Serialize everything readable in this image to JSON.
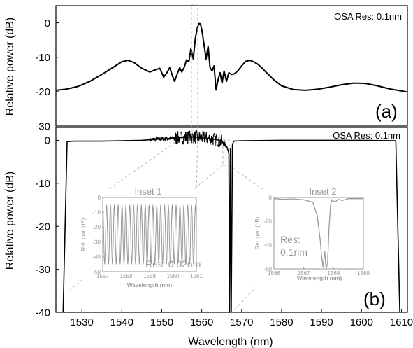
{
  "chart_data": [
    {
      "id": "a",
      "type": "line",
      "panel_label": "(a)",
      "annotation": "OSA Res: 0.1nm",
      "ylabel": "Relative power (dB)",
      "ylim": [
        -30,
        5
      ],
      "xlim": [
        1523.5,
        1611.5
      ],
      "yticks": [
        0,
        -10,
        -20,
        -30
      ],
      "ytick_labels": [
        "0",
        "-10",
        "-20",
        "-30"
      ],
      "grid": false,
      "series": [
        {
          "x": [
            1523.5,
            1526,
            1529,
            1532,
            1535,
            1538,
            1540,
            1541.5,
            1543,
            1545,
            1547,
            1548.5,
            1549.5,
            1550.5,
            1551.3,
            1552,
            1552.7,
            1553.2,
            1553.9,
            1554.5,
            1555,
            1555.6,
            1556.2,
            1556.8,
            1557.3,
            1557.9,
            1558.4,
            1558.9,
            1559.3,
            1559.7,
            1560.1,
            1560.6,
            1561.1,
            1561.6,
            1562.1,
            1562.6,
            1563.1,
            1563.6,
            1564.1,
            1564.6,
            1565.1,
            1565.6,
            1566.2,
            1566.8,
            1567.5,
            1568.2,
            1569,
            1570,
            1571,
            1572,
            1573,
            1574,
            1575,
            1576,
            1578,
            1580,
            1583,
            1586,
            1589,
            1592,
            1595,
            1598,
            1601,
            1604,
            1607,
            1611.5
          ],
          "y": [
            -19.6,
            -19.3,
            -18.5,
            -17,
            -15,
            -12.8,
            -11.3,
            -10.9,
            -11.5,
            -13.2,
            -14.3,
            -13.6,
            -13.2,
            -15.8,
            -14.5,
            -13,
            -15.5,
            -17,
            -14.8,
            -13,
            -14.3,
            -13,
            -10.8,
            -11.3,
            -7.5,
            -10.5,
            -4.5,
            -1.5,
            -0.2,
            -0.3,
            -2.5,
            -6.5,
            -10.5,
            -6.8,
            -13,
            -14,
            -12.5,
            -19.5,
            -16.5,
            -14.5,
            -17.5,
            -14,
            -17,
            -14.5,
            -15,
            -14.8,
            -14,
            -12.5,
            -11.2,
            -10.9,
            -11.3,
            -12,
            -13,
            -14.2,
            -16.5,
            -18.3,
            -19.4,
            -19.6,
            -19.3,
            -18.7,
            -18,
            -17.5,
            -17.6,
            -18.3,
            -19.2,
            -20.1
          ]
        }
      ]
    },
    {
      "id": "b",
      "type": "line",
      "panel_label": "(b)",
      "annotation": "OSA Res: 0.1nm",
      "xlabel": "Wavelength (nm)",
      "ylabel": "Relative power (dB)",
      "ylim": [
        -40,
        3
      ],
      "xlim": [
        1523.5,
        1611.5
      ],
      "xticks": [
        1530,
        1540,
        1550,
        1560,
        1570,
        1580,
        1590,
        1600,
        1610
      ],
      "xtick_labels": [
        "1530",
        "1540",
        "1550",
        "1560",
        "1570",
        "1580",
        "1590",
        "1600",
        "1610"
      ],
      "yticks": [
        0,
        -10,
        -20,
        -30,
        -40
      ],
      "ytick_labels": [
        "0",
        "-10",
        "-20",
        "-30",
        "-40"
      ],
      "grid": false,
      "series": [
        {
          "x": [
            1525.3,
            1526.3,
            1528,
            1535,
            1540,
            1545,
            1548,
            1550,
            1553,
            1556,
            1558,
            1560,
            1562,
            1564,
            1565.5,
            1566.3,
            1566.8,
            1567,
            1567.2,
            1567.4,
            1567.7,
            1568,
            1570,
            1580,
            1590,
            1600,
            1608.6,
            1609.6
          ],
          "y": [
            -40,
            -0.3,
            -0.2,
            -0.2,
            -0.1,
            0,
            0.2,
            0.3,
            0.5,
            0.7,
            0.8,
            0.6,
            0.4,
            0.1,
            -0.6,
            -1.5,
            -3,
            -40,
            -2,
            -40,
            -1,
            -0.2,
            -0.1,
            0,
            0,
            0,
            -0.1,
            -40
          ]
        }
      ],
      "insets": [
        {
          "type": "line",
          "title": "Inset 1",
          "annotation": "Res: 0.02nm",
          "xlabel": "Wavelength (nm)",
          "ylabel": "Rel. pwr (dB)",
          "xlim": [
            1557,
            1561
          ],
          "ylim": [
            -50,
            0
          ],
          "xticks": [
            1557,
            1558,
            1559,
            1560,
            1561
          ],
          "xtick_labels": [
            "1557",
            "1558",
            "1559",
            "1560",
            "1561"
          ],
          "yticks": [
            0,
            -10,
            -20,
            -30,
            -40,
            -50
          ],
          "ytick_labels": [
            "0",
            "-10",
            "-20",
            "-30",
            "-40",
            "-50"
          ],
          "series": [
            {
              "fringe_peaks_dB": -5,
              "fringe_troughs_dB": -45,
              "fringe_period_nm": 0.165
            }
          ]
        },
        {
          "type": "line",
          "title": "Inset 2",
          "annotation": "Res:\n0.1nm",
          "xlabel": "Wavelength (nm)",
          "ylabel": "Rel. pwr (dB)",
          "xlim": [
            1566,
            1569
          ],
          "ylim": [
            -60,
            0
          ],
          "xticks": [
            1566,
            1567,
            1568,
            1569
          ],
          "xtick_labels": [
            "1566",
            "1567",
            "1568",
            "1569"
          ],
          "yticks": [
            0,
            -20,
            -40,
            -60
          ],
          "ytick_labels": [
            "0",
            "-20",
            "-40",
            "-60"
          ],
          "series": [
            {
              "x": [
                1566,
                1566.3,
                1566.6,
                1567,
                1567.3,
                1567.45,
                1567.55,
                1567.6,
                1567.65,
                1567.7,
                1567.75,
                1567.8,
                1567.85,
                1567.9,
                1567.95,
                1568.05,
                1568.15,
                1568.3,
                1568.5,
                1569
              ],
              "y": [
                -1,
                -1.5,
                -1.2,
                -2,
                -4,
                -15,
                -35,
                -50,
                -59,
                -45,
                -60,
                -55,
                -25,
                -6,
                -2,
                -4,
                -1.5,
                -2.5,
                -1,
                -1
              ]
            }
          ]
        }
      ]
    }
  ]
}
